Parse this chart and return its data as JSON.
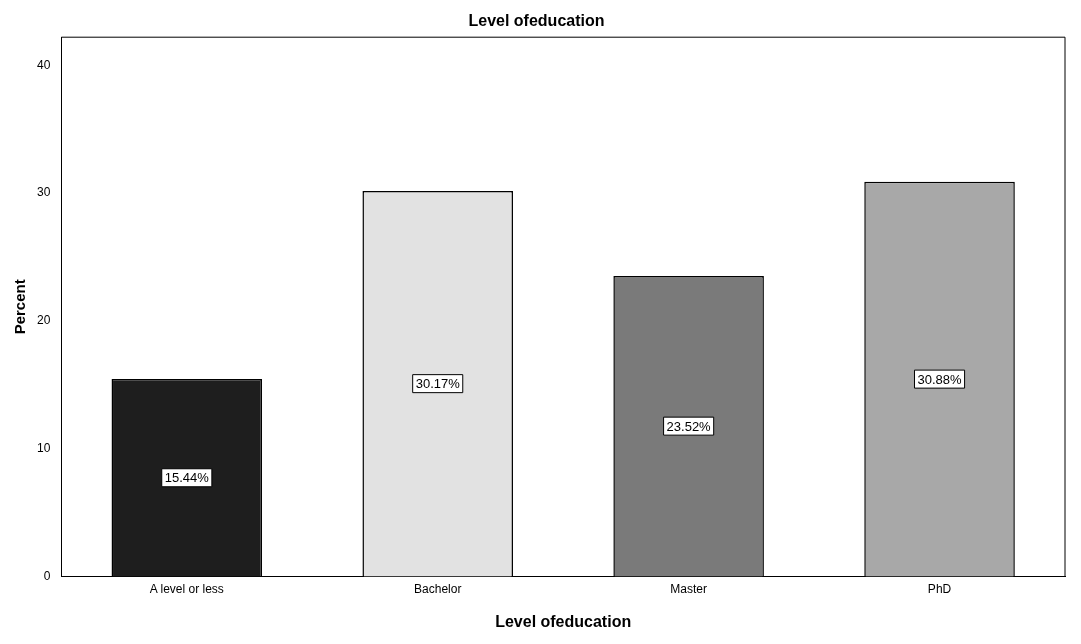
{
  "chart_data": {
    "type": "bar",
    "title": "Level ofeducation",
    "xlabel": "Level ofeducation",
    "ylabel": "Percent",
    "categories": [
      "A level or less",
      "Bachelor",
      "Master",
      "PhD"
    ],
    "values": [
      15.44,
      30.17,
      23.52,
      30.88
    ],
    "value_labels": [
      "15.44%",
      "30.17%",
      "23.52%",
      "30.88%"
    ],
    "colors": [
      "#1e1e1e",
      "#e2e2e2",
      "#7a7a7a",
      "#a8a8a8"
    ],
    "ylim": [
      0,
      42.2
    ],
    "yticks": [
      0,
      10,
      20,
      30,
      40
    ],
    "grid": false,
    "legend": false
  }
}
